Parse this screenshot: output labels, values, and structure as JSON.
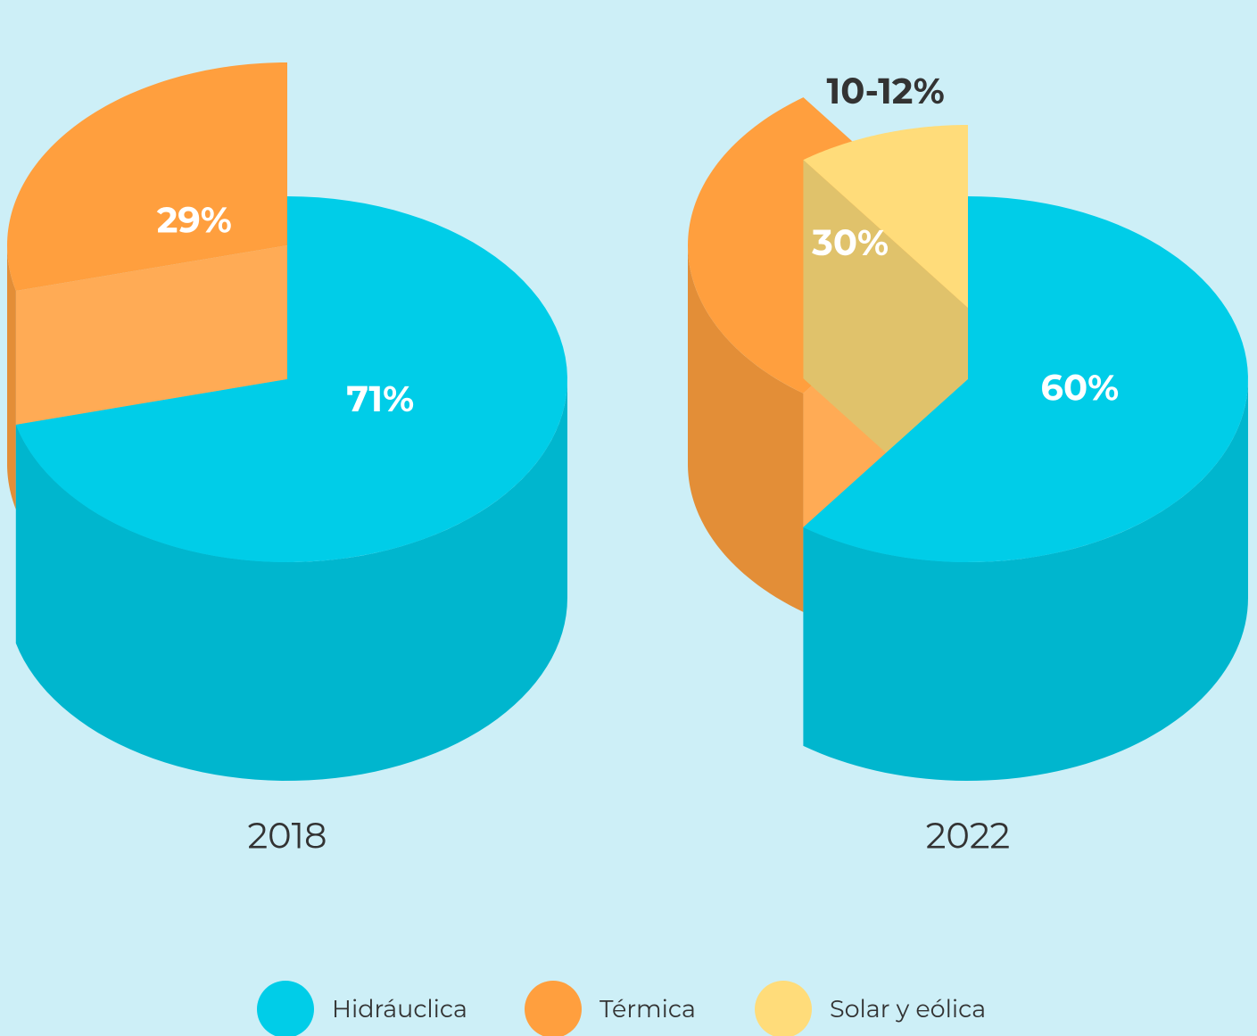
{
  "chart_data": [
    {
      "type": "pie",
      "title": "2018",
      "categories": [
        "Hidráuclica",
        "Térmica"
      ],
      "values": [
        71,
        29
      ],
      "value_labels": [
        "71%",
        "29%"
      ],
      "colors": [
        "#00cde8",
        "#ff9f3e"
      ],
      "exploded": [
        false,
        true
      ]
    },
    {
      "type": "pie",
      "title": "2022",
      "categories": [
        "Hidráuclica",
        "Térmica",
        "Solar y eólica"
      ],
      "values": [
        60,
        30,
        10
      ],
      "value_labels": [
        "60%",
        "30%",
        "10-12%"
      ],
      "colors": [
        "#00cde8",
        "#ff9f3e",
        "#ffdc7a"
      ],
      "exploded": [
        false,
        true,
        true
      ]
    }
  ]
}
